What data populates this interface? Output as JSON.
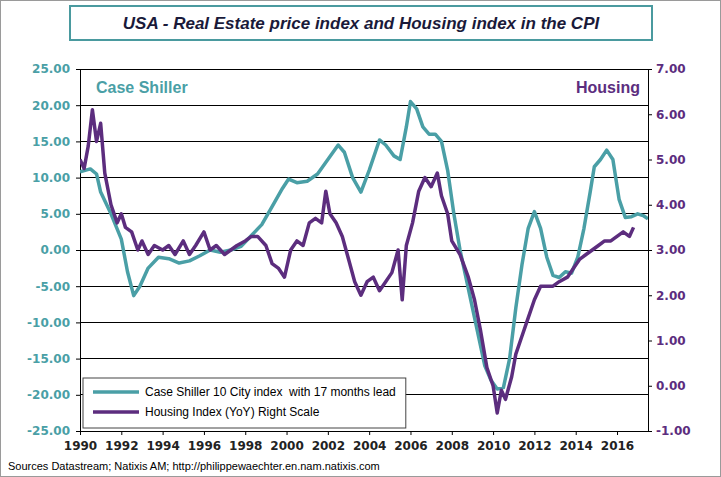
{
  "chart_data": {
    "type": "line",
    "title": "USA - Real Estate price index and Housing index in the CPI",
    "y_label": "Case Shiller",
    "y2_label": "Housing",
    "source": "Sources Datastream; Natixis AM; http://philippewaechter.en.nam.natixis.com",
    "xlim": [
      1990,
      2017.5
    ],
    "xticks": [
      1990,
      1992,
      1994,
      1996,
      1998,
      2000,
      2002,
      2004,
      2006,
      2008,
      2010,
      2012,
      2014,
      2016
    ],
    "ylim": [
      -25,
      25
    ],
    "yticks": [
      {
        "value": -25,
        "label": "-25.00"
      },
      {
        "value": -20,
        "label": "-20.00"
      },
      {
        "value": -15,
        "label": "-15.00"
      },
      {
        "value": -10,
        "label": "-10.00"
      },
      {
        "value": -5,
        "label": "-5.00"
      },
      {
        "value": 0,
        "label": "0.00"
      },
      {
        "value": 5,
        "label": "5.00"
      },
      {
        "value": 10,
        "label": "10.00"
      },
      {
        "value": 15,
        "label": "15.00"
      },
      {
        "value": 20,
        "label": "20.00"
      },
      {
        "value": 25,
        "label": "25.00"
      }
    ],
    "y2lim": [
      -1,
      7
    ],
    "y2ticks": [
      {
        "value": -1,
        "label": "-1.00"
      },
      {
        "value": 0,
        "label": "0.00"
      },
      {
        "value": 1,
        "label": "1.00"
      },
      {
        "value": 2,
        "label": "2.00"
      },
      {
        "value": 3,
        "label": "3.00"
      },
      {
        "value": 4,
        "label": "4.00"
      },
      {
        "value": 5,
        "label": "5.00"
      },
      {
        "value": 6,
        "label": "6.00"
      },
      {
        "value": 7,
        "label": "7.00"
      }
    ],
    "grid": true,
    "legend": "bottom-left",
    "series": [
      {
        "name": "Case Shiller 10 City index  with 17 months lead",
        "color": "#4a9fa6",
        "x": [
          1990.0,
          1990.5,
          1990.8,
          1991.0,
          1991.5,
          1992.0,
          1992.3,
          1992.6,
          1992.9,
          1993.3,
          1993.8,
          1994.3,
          1994.8,
          1995.3,
          1995.8,
          1996.3,
          1996.8,
          1997.3,
          1997.8,
          1998.3,
          1998.8,
          1999.3,
          1999.8,
          2000.1,
          2000.5,
          2001.0,
          2001.5,
          2002.0,
          2002.5,
          2002.8,
          2003.2,
          2003.6,
          2004.0,
          2004.5,
          2004.8,
          2005.2,
          2005.5,
          2005.8,
          2006.0,
          2006.3,
          2006.6,
          2006.9,
          2007.2,
          2007.5,
          2007.8,
          2008.1,
          2008.4,
          2008.7,
          2009.0,
          2009.3,
          2009.6,
          2009.9,
          2010.2,
          2010.5,
          2010.8,
          2011.1,
          2011.4,
          2011.7,
          2012.0,
          2012.3,
          2012.6,
          2012.9,
          2013.2,
          2013.5,
          2013.8,
          2014.1,
          2014.4,
          2014.7,
          2014.9,
          2015.2,
          2015.5,
          2015.8,
          2016.1,
          2016.4,
          2016.7,
          2017.0,
          2017.3,
          2017.5
        ],
        "values": [
          10.8,
          11.2,
          10.5,
          8,
          5,
          1.5,
          -3,
          -6.3,
          -5,
          -2.5,
          -1,
          -1.2,
          -1.8,
          -1.5,
          -0.8,
          0,
          -0.3,
          0,
          0.5,
          2,
          3.5,
          6,
          8.5,
          9.8,
          9.3,
          9.5,
          10.5,
          12.5,
          14.5,
          13.5,
          10,
          8,
          11,
          15.2,
          14.5,
          13,
          12.5,
          17,
          20.5,
          19.5,
          17,
          16,
          16,
          15,
          11,
          5,
          0,
          -4,
          -8,
          -12,
          -16,
          -18,
          -19.2,
          -19,
          -15,
          -8,
          -2,
          3,
          5.3,
          3,
          -1,
          -3.5,
          -3.8,
          -3,
          -3.2,
          -1,
          3,
          8,
          11.5,
          12.5,
          13.8,
          12.5,
          7,
          4.5,
          4.6,
          5,
          4.7,
          4.3
        ]
      },
      {
        "name": "Housing Index (YoY) Right Scale",
        "color": "#5c2d7e",
        "axis": "y2",
        "x": [
          1990.0,
          1990.2,
          1990.4,
          1990.6,
          1990.8,
          1991.0,
          1991.2,
          1991.5,
          1991.8,
          1992.0,
          1992.2,
          1992.5,
          1992.8,
          1993.0,
          1993.3,
          1993.6,
          1994.0,
          1994.3,
          1994.6,
          1995.0,
          1995.3,
          1995.6,
          1996.0,
          1996.3,
          1996.6,
          1997.0,
          1997.3,
          1997.6,
          1998.0,
          1998.3,
          1998.6,
          1999.0,
          1999.3,
          1999.6,
          1999.9,
          2000.2,
          2000.5,
          2000.8,
          2001.1,
          2001.4,
          2001.7,
          2001.9,
          2002.1,
          2002.4,
          2002.7,
          2003.0,
          2003.3,
          2003.6,
          2003.9,
          2004.2,
          2004.5,
          2004.8,
          2005.1,
          2005.4,
          2005.6,
          2005.8,
          2006.1,
          2006.4,
          2006.7,
          2007.0,
          2007.3,
          2007.5,
          2007.8,
          2008.0,
          2008.4,
          2008.8,
          2009.1,
          2009.4,
          2009.7,
          2010.0,
          2010.2,
          2010.4,
          2010.6,
          2010.9,
          2011.1,
          2011.4,
          2011.7,
          2012.0,
          2012.3,
          2012.6,
          2012.9,
          2013.2,
          2013.6,
          2013.9,
          2014.2,
          2014.5,
          2014.8,
          2015.1,
          2015.4,
          2015.7,
          2016.0,
          2016.3,
          2016.6,
          2016.8
        ],
        "values": [
          5.0,
          4.8,
          5.3,
          6.1,
          5.4,
          5.8,
          4.7,
          4.0,
          3.6,
          3.8,
          3.5,
          3.4,
          3.0,
          3.2,
          2.9,
          3.1,
          3.0,
          3.1,
          2.9,
          3.2,
          2.9,
          3.1,
          3.4,
          3.0,
          3.1,
          2.9,
          3.0,
          3.1,
          3.2,
          3.3,
          3.3,
          3.1,
          2.7,
          2.6,
          2.4,
          3.0,
          3.2,
          3.1,
          3.6,
          3.7,
          3.6,
          4.3,
          3.8,
          3.6,
          3.3,
          2.8,
          2.3,
          2.0,
          2.3,
          2.4,
          2.1,
          2.3,
          2.5,
          3.0,
          1.9,
          3.1,
          3.6,
          4.3,
          4.6,
          4.4,
          4.7,
          4.2,
          3.8,
          3.2,
          2.9,
          2.4,
          1.9,
          1.2,
          0.4,
          0.0,
          -0.6,
          -0.1,
          -0.3,
          0.2,
          0.7,
          1.1,
          1.5,
          1.9,
          2.2,
          2.2,
          2.2,
          2.3,
          2.4,
          2.6,
          2.8,
          2.9,
          3.0,
          3.1,
          3.2,
          3.2,
          3.3,
          3.4,
          3.3,
          3.5
        ]
      }
    ]
  }
}
